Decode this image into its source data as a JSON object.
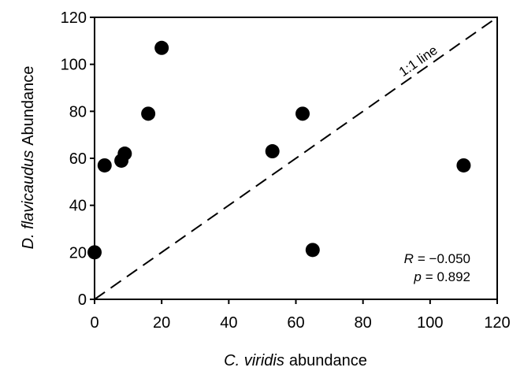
{
  "chart_data": {
    "type": "scatter",
    "x_label": {
      "italic": "C. viridis",
      "text": "abundance"
    },
    "y_label": {
      "italic": "D. flavicaudus",
      "text": "Abundance"
    },
    "x": [
      0,
      3,
      8,
      9,
      16,
      20,
      53,
      62,
      65,
      110
    ],
    "series": [
      {
        "color": "#000000",
        "values": [
          20,
          57,
          59,
          62,
          79,
          107,
          63,
          79,
          21,
          57
        ]
      }
    ],
    "xlim": [
      0,
      120
    ],
    "xticks": [
      0,
      20,
      40,
      60,
      80,
      100,
      120
    ],
    "ylim": [
      0,
      120
    ],
    "yticks": [
      0,
      20,
      40,
      60,
      80,
      100,
      120
    ],
    "reference_line": {
      "label": "1:1 line",
      "x": [
        0,
        120
      ],
      "y": [
        0,
        120
      ]
    },
    "stats": [
      {
        "symbol": "R",
        "text": "= −0.050"
      },
      {
        "symbol": "p",
        "text": "= 0.892"
      }
    ],
    "grid": false
  }
}
